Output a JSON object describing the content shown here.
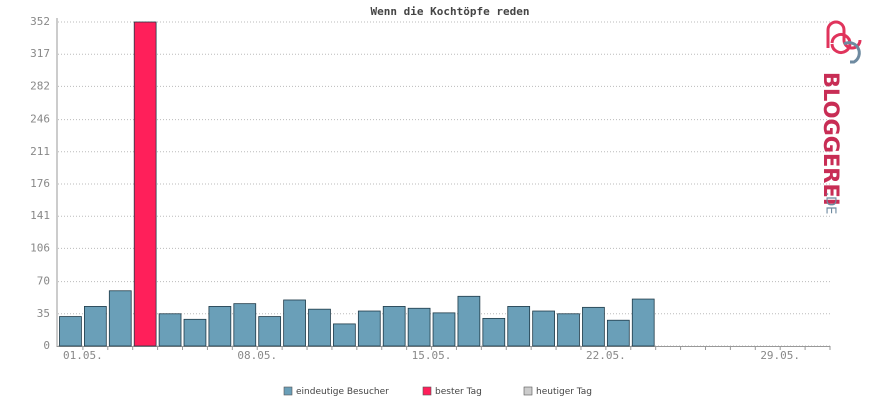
{
  "chart_data": {
    "type": "bar",
    "title": "Wenn die Kochtöpfe reden",
    "categories": [
      "01.05.",
      null,
      null,
      null,
      null,
      null,
      null,
      "08.05.",
      null,
      null,
      null,
      null,
      null,
      null,
      "15.05.",
      null,
      null,
      null,
      null,
      null,
      null,
      "22.05.",
      null,
      null,
      null,
      null,
      null,
      null,
      "29.05.",
      null,
      null
    ],
    "series": [
      {
        "name": "eindeutige Besucher",
        "color": "#6a9fb8",
        "values": [
          32,
          43,
          60,
          null,
          35,
          29,
          43,
          46,
          32,
          50,
          40,
          24,
          38,
          43,
          41,
          36,
          54,
          30,
          43,
          38,
          35,
          42,
          28,
          51,
          null,
          null,
          null,
          null,
          null,
          null,
          null
        ]
      },
      {
        "name": "bester Tag",
        "color": "#ff1f5a",
        "values": [
          null,
          null,
          null,
          352,
          null,
          null,
          null,
          null,
          null,
          null,
          null,
          null,
          null,
          null,
          null,
          null,
          null,
          null,
          null,
          null,
          null,
          null,
          null,
          null,
          null,
          null,
          null,
          null,
          null,
          null,
          null
        ]
      },
      {
        "name": "heutiger Tag",
        "color": "#cccccc",
        "values": [
          null,
          null,
          null,
          null,
          null,
          null,
          null,
          null,
          null,
          null,
          null,
          null,
          null,
          null,
          null,
          null,
          null,
          null,
          null,
          null,
          null,
          null,
          null,
          null,
          null,
          null,
          null,
          null,
          null,
          null,
          null
        ]
      }
    ],
    "ylim": [
      0,
      352
    ],
    "yticks": [
      0,
      35,
      70,
      106,
      141,
      176,
      211,
      246,
      282,
      317,
      352
    ],
    "grid": true,
    "logo": "BLOGGEREI",
    "logo_suffix": ".DE"
  }
}
